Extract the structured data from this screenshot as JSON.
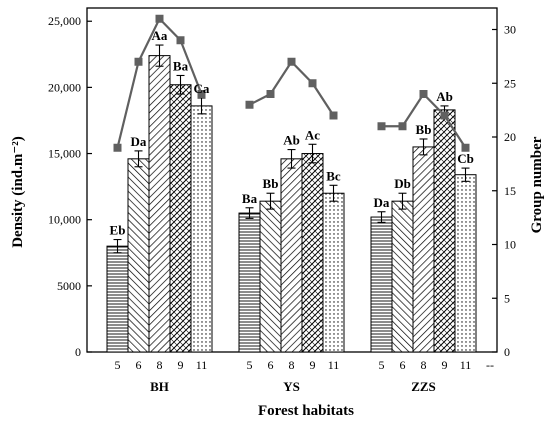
{
  "chart_data": {
    "type": "bar",
    "xlabel": "Forest habitats",
    "ylabel": "Density (ind.m⁻²)",
    "y2label": "Group number",
    "ylim": [
      0,
      26000
    ],
    "y2lim": [
      0,
      32
    ],
    "yticks": [
      "0",
      "5000",
      "10,000",
      "15,000",
      "20,000",
      "25,000"
    ],
    "y2ticks": [
      "0",
      "5",
      "10",
      "15",
      "20",
      "25",
      "30"
    ],
    "grid": false,
    "groups": [
      {
        "name": "BH",
        "categories": [
          "5",
          "6",
          "8",
          "9",
          "11"
        ],
        "values": [
          8000,
          14600,
          22400,
          20200,
          18600
        ],
        "errors": [
          500,
          600,
          800,
          700,
          600
        ],
        "labels": [
          "Eb",
          "Da",
          "Aa",
          "Ba",
          "Ca"
        ],
        "group_number": [
          19,
          27,
          31,
          29,
          24
        ]
      },
      {
        "name": "YS",
        "categories": [
          "5",
          "6",
          "8",
          "9",
          "11"
        ],
        "values": [
          10500,
          11400,
          14600,
          15000,
          12000
        ],
        "errors": [
          400,
          600,
          700,
          700,
          600
        ],
        "labels": [
          "Ba",
          "Bb",
          "Ab",
          "Ac",
          "Bc"
        ],
        "group_number": [
          23,
          24,
          27,
          25,
          22
        ]
      },
      {
        "name": "ZZS",
        "categories": [
          "5",
          "6",
          "8",
          "9",
          "11"
        ],
        "values": [
          10200,
          11400,
          15500,
          18300,
          13400
        ],
        "errors": [
          400,
          600,
          600,
          300,
          500
        ],
        "labels": [
          "Da",
          "Db",
          "Bb",
          "Ab",
          "Cb"
        ],
        "group_number": [
          21,
          21,
          24,
          22,
          19
        ]
      }
    ],
    "extra_tick": "--",
    "line_color": "#606060",
    "bar_patterns": [
      "horizontal-lines",
      "diagonal-back",
      "diagonal-forward",
      "crosshatch",
      "dots"
    ]
  }
}
